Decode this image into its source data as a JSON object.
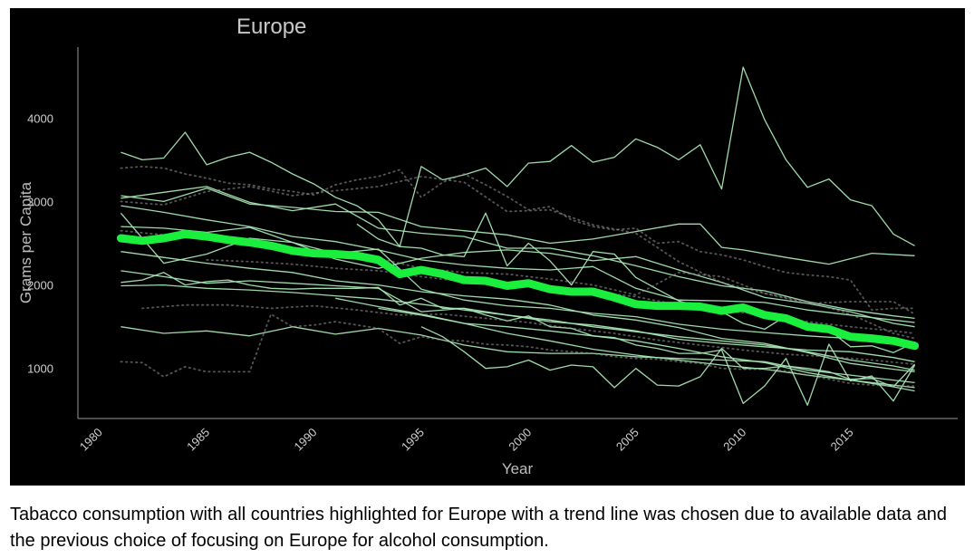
{
  "caption": "Tabacco consumption with all countries highlighted for Europe with a trend line was chosen due to available data and the previous choice of focusing on Europe for alcohol consumption.",
  "chart_data": {
    "type": "line",
    "title": "Europe",
    "xlabel": "Year",
    "ylabel": "Grams per Capita",
    "xlim": [
      1979,
      2020
    ],
    "ylim": [
      400,
      4850
    ],
    "x_ticks": [
      1980,
      1985,
      1990,
      1995,
      2000,
      2005,
      2010,
      2015
    ],
    "y_ticks": [
      1000,
      2000,
      3000,
      4000
    ],
    "grid": false,
    "legend": "none",
    "colors": {
      "background": "#000000",
      "country_line": "#a8e6b4",
      "trend_line": "#19ef3c",
      "axis": "#9a9a9a"
    },
    "trend": {
      "x": [
        1981,
        1982,
        1983,
        1984,
        1985,
        1986,
        1987,
        1988,
        1989,
        1990,
        1991,
        1992,
        1993,
        1994,
        1995,
        1996,
        1997,
        1998,
        1999,
        2000,
        2001,
        2002,
        2003,
        2004,
        2005,
        2006,
        2007,
        2008,
        2009,
        2010,
        2011,
        2012,
        2013,
        2014,
        2015,
        2016,
        2017,
        2018
      ],
      "y": [
        2560,
        2530,
        2560,
        2610,
        2580,
        2540,
        2510,
        2470,
        2410,
        2380,
        2370,
        2350,
        2300,
        2130,
        2180,
        2130,
        2060,
        2050,
        1990,
        2020,
        1950,
        1920,
        1920,
        1850,
        1770,
        1750,
        1750,
        1740,
        1690,
        1730,
        1640,
        1600,
        1500,
        1470,
        1380,
        1360,
        1330,
        1270
      ]
    },
    "series": [
      {
        "x": [
          1981,
          1982,
          1983,
          1984,
          1985,
          1986,
          1987,
          1988,
          1989,
          1990,
          1991,
          1992,
          1993,
          1994,
          1995,
          1996,
          1997,
          1998,
          1999,
          2000,
          2001,
          2002,
          2003,
          2004,
          2005,
          2006,
          2007,
          2008,
          2009,
          2010,
          2011,
          2012,
          2013,
          2014,
          2015,
          2016,
          2017,
          2018
        ],
        "y": [
          3590,
          3500,
          3520,
          3830,
          3440,
          3530,
          3590,
          3470,
          3330,
          3210,
          3050,
          2950,
          2780,
          2460,
          3420,
          3260,
          3320,
          3400,
          3180,
          3460,
          3480,
          3670,
          3470,
          3530,
          3750,
          3650,
          3500,
          3680,
          3150,
          4610,
          3980,
          3500,
          3170,
          3270,
          3020,
          2950,
          2610,
          2470
        ],
        "style": "solid"
      },
      {
        "x": [
          1981,
          1983,
          1985,
          1987,
          1989,
          1991,
          1993,
          1995,
          1997,
          1999,
          2001,
          2003,
          2005,
          2007,
          2008,
          2009,
          2010,
          2012,
          2014,
          2016,
          2018
        ],
        "y": [
          3070,
          3000,
          3160,
          2970,
          2930,
          2880,
          2870,
          2700,
          2650,
          2600,
          2500,
          2550,
          2640,
          2730,
          2730,
          2450,
          2420,
          2330,
          2250,
          2380,
          2350
        ],
        "style": "solid"
      },
      {
        "x": [
          1981,
          1983,
          1985,
          1987,
          1989,
          1991,
          1993,
          1995,
          1997,
          1999,
          2001,
          2003,
          2005,
          2007,
          2009,
          2011,
          2013,
          2015,
          2017,
          2018
        ],
        "y": [
          3040,
          3110,
          3180,
          2990,
          2890,
          2970,
          2680,
          2620,
          2580,
          2440,
          2440,
          2350,
          2230,
          2100,
          1990,
          1930,
          1800,
          1700,
          1630,
          1600
        ],
        "style": "solid"
      },
      {
        "x": [
          1981,
          1983,
          1985,
          1987,
          1989,
          1991,
          1993,
          1995,
          1997,
          1999,
          2001,
          2003,
          2005,
          2007,
          2009,
          2011,
          2013,
          2015,
          2017,
          2018
        ],
        "y": [
          2950,
          2870,
          2780,
          2700,
          2580,
          2520,
          2420,
          2300,
          2240,
          2200,
          2180,
          2220,
          1960,
          1820,
          1810,
          1790,
          1700,
          1640,
          1580,
          1550
        ],
        "style": "solid"
      },
      {
        "x": [
          1981,
          1983,
          1985,
          1987,
          1989,
          1991,
          1993,
          1995,
          1997,
          1999,
          2001,
          2003,
          2005,
          2007,
          2009,
          2011,
          2013,
          2015,
          2017,
          2018
        ],
        "y": [
          2860,
          2260,
          2370,
          2560,
          2510,
          2310,
          2200,
          2320,
          2390,
          2420,
          2380,
          2290,
          2340,
          2180,
          2030,
          1850,
          1780,
          1680,
          1540,
          1500
        ],
        "style": "solid"
      },
      {
        "x": [
          1981,
          1983,
          1985,
          1987,
          1989,
          1991,
          1993,
          1995,
          1997,
          1999,
          2001,
          2003,
          2005,
          2007,
          2009,
          2011,
          2013,
          2015,
          2017,
          2018
        ],
        "y": [
          2700,
          2680,
          2630,
          2690,
          2510,
          2380,
          2430,
          1950,
          1820,
          1750,
          1720,
          1660,
          1620,
          1530,
          1470,
          1430,
          1390,
          1360,
          1320,
          1300
        ],
        "style": "solid"
      },
      {
        "x": [
          1981,
          1983,
          1985,
          1987,
          1989,
          1991,
          1993,
          1995,
          1997,
          1999,
          2001,
          2003,
          2005,
          2007,
          2009,
          2011,
          2013,
          2015,
          2017,
          2018
        ],
        "y": [
          2400,
          2330,
          2260,
          2200,
          2150,
          2050,
          2000,
          1920,
          1870,
          1830,
          1760,
          1640,
          1580,
          1490,
          1360,
          1300,
          1190,
          1060,
          990,
          960
        ],
        "style": "solid"
      },
      {
        "x": [
          1981,
          1983,
          1985,
          1987,
          1989,
          1991,
          1993,
          1995,
          1997,
          1999,
          2001,
          2003,
          2005,
          2007,
          2009,
          2011,
          2013,
          2015,
          2017,
          2018
        ],
        "y": [
          2170,
          2100,
          2020,
          2050,
          2020,
          1990,
          1960,
          1680,
          1720,
          1640,
          1560,
          1520,
          1450,
          1350,
          1300,
          1260,
          1220,
          1200,
          1130,
          1080
        ],
        "style": "solid"
      },
      {
        "x": [
          1981,
          1982,
          1983,
          1984,
          1985,
          1986,
          1987,
          1988,
          1989,
          1990,
          1991,
          1992,
          1993,
          1994,
          1995,
          1996,
          1997,
          1998,
          1999,
          2000,
          2001,
          2002,
          2003,
          2004,
          2005,
          2006,
          2007,
          2008,
          2009,
          2010,
          2011,
          2012,
          2013,
          2014,
          2015,
          2016,
          2017,
          2018
        ],
        "y": [
          2030,
          2060,
          2150,
          2000,
          2040,
          2060,
          2000,
          1960,
          1950,
          1960,
          1960,
          1960,
          1970,
          1760,
          1840,
          1720,
          1720,
          1640,
          1570,
          1630,
          1500,
          1480,
          1390,
          1370,
          1280,
          1240,
          1180,
          1180,
          1220,
          580,
          790,
          1120,
          560,
          1290,
          850,
          910,
          610,
          1040
        ],
        "style": "solid"
      },
      {
        "x": [
          1981,
          1983,
          1985,
          1987,
          1989,
          1991,
          1993,
          1995,
          1997,
          1999,
          2001,
          2003,
          2005,
          2007,
          2009,
          2011,
          2013,
          2015,
          2017,
          2018
        ],
        "y": [
          1990,
          2000,
          1960,
          1940,
          1910,
          1870,
          1830,
          1770,
          1700,
          1640,
          1580,
          1500,
          1440,
          1380,
          1330,
          1280,
          1200,
          1100,
          1030,
          980
        ],
        "style": "solid"
      },
      {
        "x": [
          1981,
          1983,
          1985,
          1987,
          1989,
          1991,
          1993,
          1995,
          1997,
          1999,
          2001,
          2003,
          2005,
          2007,
          2009,
          2011,
          2013,
          2015,
          2017,
          2018
        ],
        "y": [
          1500,
          1420,
          1450,
          1390,
          1500,
          1410,
          1480,
          1400,
          1280,
          1200,
          1180,
          1180,
          1140,
          1120,
          1100,
          1080,
          980,
          920,
          860,
          830
        ],
        "style": "solid"
      },
      {
        "x": [
          1992,
          1993,
          1994,
          1995,
          1996,
          1997,
          1998,
          1999,
          2000,
          2001,
          2002,
          2003,
          2004,
          2005,
          2006,
          2007,
          2008,
          2009,
          2010,
          2011,
          2012,
          2013,
          2014,
          2015,
          2016,
          2017,
          2018
        ],
        "y": [
          2730,
          2550,
          2460,
          2440,
          2360,
          2340,
          2860,
          2230,
          2500,
          2290,
          2000,
          2400,
          2370,
          2090,
          1950,
          1810,
          1730,
          1680,
          1540,
          1470,
          1630,
          1510,
          1460,
          1260,
          1270,
          1190,
          1310
        ],
        "style": "solid"
      },
      {
        "x": [
          1991,
          1993,
          1995,
          1997,
          1999,
          2001,
          2003,
          2005,
          2007,
          2009,
          2011,
          2013,
          2015,
          2017,
          2018
        ],
        "y": [
          1840,
          1740,
          1650,
          1540,
          1500,
          1450,
          1390,
          1330,
          1240,
          1140,
          1070,
          950,
          860,
          780,
          730
        ],
        "style": "solid"
      },
      {
        "x": [
          1993,
          1995,
          1997,
          1999,
          2001,
          2003,
          2005,
          2007,
          2009,
          2011,
          2013,
          2015,
          2017,
          2018
        ],
        "y": [
          1720,
          1640,
          1540,
          1420,
          1330,
          1230,
          1160,
          1100,
          1040,
          990,
          920,
          860,
          800,
          770
        ],
        "style": "solid"
      },
      {
        "x": [
          1995,
          1996,
          1997,
          1998,
          1999,
          2000,
          2001,
          2002,
          2003,
          2004,
          2005,
          2006,
          2007,
          2008,
          2009,
          2010,
          2011,
          2012,
          2013,
          2014,
          2015,
          2016,
          2017,
          2018
        ],
        "y": [
          1500,
          1380,
          1200,
          1000,
          1020,
          1100,
          980,
          1040,
          1020,
          770,
          1000,
          800,
          790,
          900,
          1240,
          1000,
          1000,
          1030,
          1000,
          960,
          870,
          880,
          780,
          1050
        ],
        "style": "solid"
      },
      {
        "x": [
          1981,
          1982,
          1983,
          1984,
          1985,
          1986,
          1987,
          1988,
          1989,
          1990,
          1991,
          1992,
          1993,
          1994,
          1995,
          1996,
          1997,
          1998,
          1999,
          2000,
          2001,
          2002,
          2003,
          2004,
          2005,
          2006,
          2007,
          2008,
          2009,
          2010,
          2011,
          2012,
          2013,
          2014,
          2015,
          2016,
          2017,
          2018
        ],
        "y": [
          3400,
          3420,
          3400,
          3330,
          3280,
          3220,
          3200,
          3150,
          3120,
          3080,
          3200,
          3260,
          3300,
          3380,
          3050,
          3230,
          3330,
          3200,
          3060,
          2900,
          2940,
          2780,
          2700,
          2660,
          2680,
          2500,
          2520,
          2400,
          2360,
          2300,
          2220,
          2150,
          2120,
          2100,
          2060,
          1700,
          1720,
          1720
        ],
        "style": "dotted"
      },
      {
        "x": [
          1981,
          1983,
          1985,
          1987,
          1989,
          1991,
          1993,
          1995,
          1997,
          1999,
          2001,
          2003,
          2005,
          2007,
          2009,
          2011,
          2013,
          2015,
          2017,
          2018
        ],
        "y": [
          3000,
          2960,
          3120,
          3180,
          3070,
          3130,
          3180,
          3300,
          3230,
          2880,
          2900,
          2720,
          2620,
          2280,
          2030,
          1900,
          1780,
          1800,
          1800,
          1650
        ],
        "style": "dotted"
      },
      {
        "x": [
          1981,
          1983,
          1985,
          1987,
          1989,
          1991,
          1993,
          1995,
          1997,
          1999,
          2001,
          2003,
          2005,
          2007,
          2009,
          2011,
          2013,
          2015,
          2017,
          2018
        ],
        "y": [
          2650,
          2600,
          2580,
          2480,
          2450,
          2380,
          2320,
          2200,
          2150,
          2130,
          2070,
          2000,
          1880,
          2150,
          2100,
          1900,
          1800,
          1650,
          1420,
          1360
        ],
        "style": "dotted"
      },
      {
        "x": [
          1982,
          1984,
          1986,
          1988,
          1990,
          1992,
          1994,
          1996,
          1998,
          2000,
          2002,
          2004,
          2006,
          2008,
          2010,
          2012,
          2014,
          2016,
          2018
        ],
        "y": [
          1720,
          1760,
          1760,
          1720,
          1750,
          1700,
          1640,
          1650,
          1600,
          1550,
          1480,
          1420,
          1340,
          1280,
          1220,
          1170,
          1140,
          1100,
          1050
        ],
        "style": "dotted"
      },
      {
        "x": [
          1981,
          1982,
          1983,
          1984,
          1985,
          1986,
          1987,
          1988,
          1989,
          1990,
          1991,
          1992,
          1993,
          1994,
          1995,
          1996,
          1997,
          1998,
          1999,
          2000,
          2001,
          2002,
          2003,
          2004,
          2005,
          2006,
          2007,
          2008,
          2009,
          2010,
          2011,
          2012,
          2013,
          2014,
          2015,
          2016,
          2017,
          2018
        ],
        "y": [
          1080,
          1070,
          900,
          1020,
          960,
          960,
          960,
          1650,
          1500,
          1520,
          1560,
          1520,
          1480,
          1300,
          1380,
          1340,
          1330,
          1290,
          1280,
          1260,
          1220,
          1200,
          1180,
          1140,
          1120,
          1110,
          1080,
          1060,
          1000,
          990,
          990,
          970,
          920,
          870,
          820,
          800,
          790,
          790
        ],
        "style": "dotted"
      },
      {
        "x": [
          1985,
          1987,
          1989,
          1991,
          1993,
          1995,
          1997,
          1999,
          2001,
          2003,
          2005,
          2007,
          2009,
          2011,
          2013,
          2015,
          2017,
          2018
        ],
        "y": [
          2300,
          2280,
          2250,
          2200,
          2170,
          2100,
          2040,
          2000,
          1980,
          1920,
          1860,
          1760,
          1700,
          1640,
          1560,
          1500,
          1450,
          1420
        ],
        "style": "dotted"
      }
    ]
  }
}
